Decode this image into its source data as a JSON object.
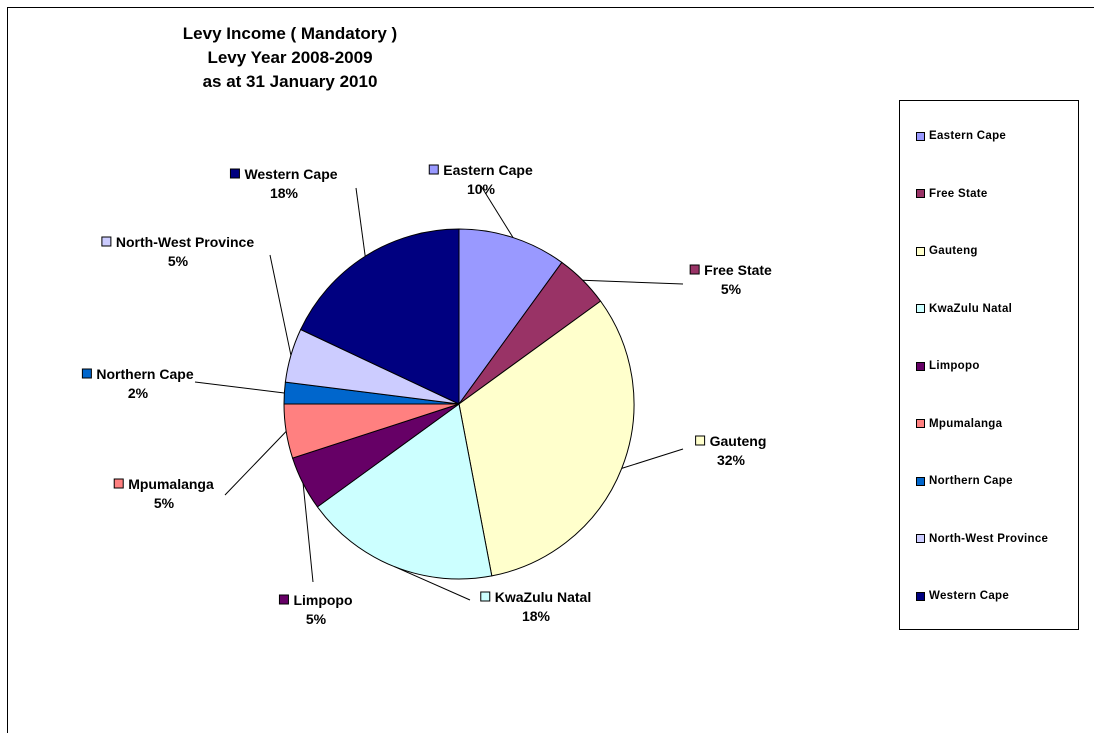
{
  "chart_data": {
    "type": "pie",
    "title": [
      "Levy Income ( Mandatory )",
      "Levy Year 2008-2009",
      "as at 31 January 2010"
    ],
    "legend_position": "right",
    "slices": [
      {
        "name": "Eastern Cape",
        "value": 10,
        "label": "10%",
        "color": "#9999ff"
      },
      {
        "name": "Free State",
        "value": 5,
        "label": "5%",
        "color": "#993366"
      },
      {
        "name": "Gauteng",
        "value": 32,
        "label": "32%",
        "color": "#ffffcc"
      },
      {
        "name": "KwaZulu Natal",
        "value": 18,
        "label": "18%",
        "color": "#ccffff"
      },
      {
        "name": "Limpopo",
        "value": 5,
        "label": "5%",
        "color": "#660066"
      },
      {
        "name": "Mpumalanga",
        "value": 5,
        "label": "5%",
        "color": "#ff8080"
      },
      {
        "name": "Northern Cape",
        "value": 2,
        "label": "2%",
        "color": "#0066cc"
      },
      {
        "name": "North-West Province",
        "value": 5,
        "label": "5%",
        "color": "#ccccff"
      },
      {
        "name": "Western Cape",
        "value": 18,
        "label": "18%",
        "color": "#000080"
      }
    ]
  }
}
